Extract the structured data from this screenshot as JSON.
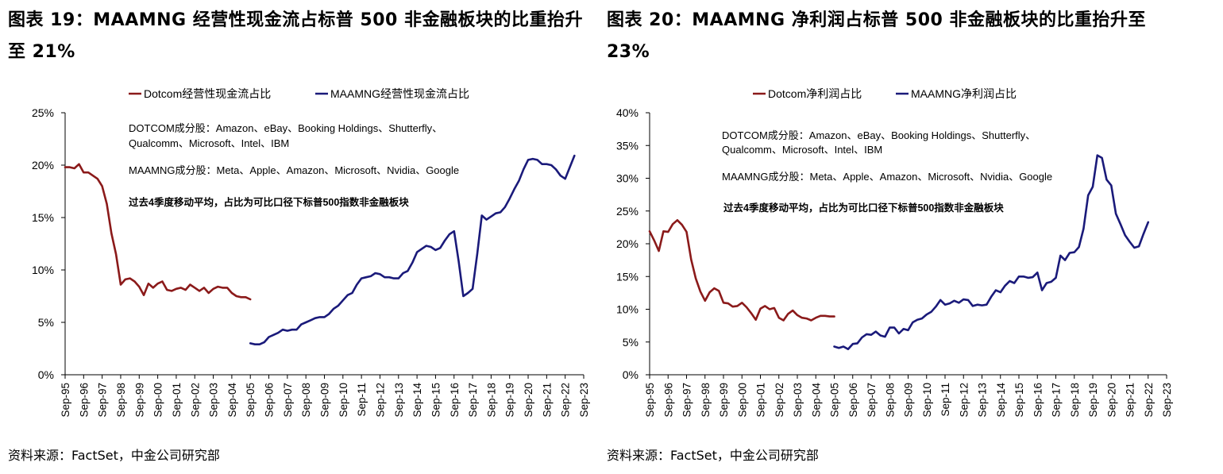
{
  "colors": {
    "dotcom": "#8b1a1a",
    "maamng": "#1a1a7a",
    "axis": "#000000"
  },
  "charts": [
    {
      "title": "图表 19：MAAMNG 经营性现金流占标普 500 非金融板块的比重抬升至 21%",
      "source": "资料来源：FactSet，中金公司研究部",
      "legend": [
        "Dotcom经营性现金流占比",
        "MAAMNG经营性现金流占比"
      ],
      "notes": [
        "DOTCOM成分股：Amazon、eBay、Booking Holdings、Shutterfly、",
        "Qualcomm、Microsoft、Intel、IBM",
        "MAAMNG成分股：Meta、Apple、Amazon、Microsoft、Nvidia、Google",
        "过去4季度移动平均，占比为可比口径下标普500指数非金融板块"
      ],
      "y_ticks": [
        "0%",
        "5%",
        "10%",
        "15%",
        "20%",
        "25%"
      ]
    },
    {
      "title": "图表 20：MAAMNG 净利润占标普 500 非金融板块的比重抬升至 23%",
      "source": "资料来源：FactSet，中金公司研究部",
      "legend": [
        "Dotcom净利润占比",
        "MAAMNG净利润占比"
      ],
      "notes": [
        "DOTCOM成分股：Amazon、eBay、Booking Holdings、Shutterfly、",
        "Qualcomm、Microsoft、Intel、IBM",
        "MAAMNG成分股：Meta、Apple、Amazon、Microsoft、Nvidia、Google",
        "过去4季度移动平均，占比为可比口径下标普500指数非金融板块"
      ],
      "y_ticks": [
        "0%",
        "5%",
        "10%",
        "15%",
        "20%",
        "25%",
        "30%",
        "35%",
        "40%"
      ]
    }
  ],
  "chart_data": [
    {
      "type": "line",
      "title": "图表 19：MAAMNG 经营性现金流占标普 500 非金融板块的比重抬升至 21%",
      "ylabel": "",
      "xlabel": "",
      "ylim": [
        0,
        25
      ],
      "x_tick_labels": [
        "Sep-95",
        "Sep-96",
        "Sep-97",
        "Sep-98",
        "Sep-99",
        "Sep-00",
        "Sep-01",
        "Sep-02",
        "Sep-03",
        "Sep-04",
        "Sep-05",
        "Sep-06",
        "Sep-07",
        "Sep-08",
        "Sep-09",
        "Sep-10",
        "Sep-11",
        "Sep-12",
        "Sep-13",
        "Sep-14",
        "Sep-15",
        "Sep-16",
        "Sep-17",
        "Sep-18",
        "Sep-19",
        "Sep-20",
        "Sep-21",
        "Sep-22",
        "Sep-23"
      ],
      "series": [
        {
          "name": "Dotcom经营性现金流占比",
          "color_key": "dotcom",
          "start_year": 1995.75,
          "values": [
            19.8,
            19.8,
            19.7,
            20.1,
            19.3,
            19.3,
            19.0,
            18.7,
            18.0,
            16.3,
            13.5,
            11.5,
            8.6,
            9.1,
            9.2,
            8.9,
            8.4,
            7.6,
            8.7,
            8.3,
            8.7,
            8.9,
            8.1,
            8.0,
            8.2,
            8.3,
            8.1,
            8.6,
            8.3,
            8.0,
            8.3,
            7.8,
            8.2,
            8.4,
            8.3,
            8.3,
            7.8,
            7.5,
            7.4,
            7.4,
            7.2
          ]
        },
        {
          "name": "MAAMNG经营性现金流占比",
          "color_key": "maamng",
          "start_year": 2005.75,
          "values": [
            3.0,
            2.9,
            2.9,
            3.1,
            3.6,
            3.8,
            4.0,
            4.3,
            4.2,
            4.3,
            4.3,
            4.8,
            5.0,
            5.2,
            5.4,
            5.5,
            5.5,
            5.8,
            6.3,
            6.6,
            7.1,
            7.6,
            7.8,
            8.6,
            9.2,
            9.3,
            9.4,
            9.7,
            9.6,
            9.3,
            9.3,
            9.2,
            9.2,
            9.7,
            9.9,
            10.7,
            11.7,
            12.0,
            12.3,
            12.2,
            11.9,
            12.1,
            12.8,
            13.4,
            13.7,
            10.8,
            7.5,
            7.8,
            8.2,
            11.5,
            15.2,
            14.8,
            15.1,
            15.4,
            15.5,
            16.0,
            16.8,
            17.7,
            18.5,
            19.6,
            20.5,
            20.6,
            20.5,
            20.1,
            20.1,
            20.0,
            19.6,
            19.0,
            18.7,
            19.8,
            20.9
          ]
        }
      ]
    },
    {
      "type": "line",
      "title": "图表 20：MAAMNG 净利润占标普 500 非金融板块的比重抬升至 23%",
      "ylabel": "",
      "xlabel": "",
      "ylim": [
        0,
        40
      ],
      "x_tick_labels": [
        "Sep-95",
        "Sep-96",
        "Sep-97",
        "Sep-98",
        "Sep-99",
        "Sep-00",
        "Sep-01",
        "Sep-02",
        "Sep-03",
        "Sep-04",
        "Sep-05",
        "Sep-06",
        "Sep-07",
        "Sep-08",
        "Sep-09",
        "Sep-10",
        "Sep-11",
        "Sep-12",
        "Sep-13",
        "Sep-14",
        "Sep-15",
        "Sep-16",
        "Sep-17",
        "Sep-18",
        "Sep-19",
        "Sep-20",
        "Sep-21",
        "Sep-22",
        "Sep-23"
      ],
      "series": [
        {
          "name": "Dotcom净利润占比",
          "color_key": "dotcom",
          "start_year": 1995.75,
          "values": [
            21.9,
            20.5,
            18.9,
            21.9,
            21.8,
            23.0,
            23.6,
            22.9,
            21.8,
            17.6,
            14.7,
            12.7,
            11.3,
            12.6,
            13.2,
            12.8,
            11.0,
            10.9,
            10.4,
            10.5,
            11.0,
            10.3,
            9.4,
            8.4,
            10.1,
            10.5,
            10.0,
            10.2,
            8.7,
            8.3,
            9.3,
            9.8,
            9.1,
            8.7,
            8.6,
            8.3,
            8.7,
            9.0,
            9.0,
            8.9,
            8.9
          ]
        },
        {
          "name": "MAAMNG净利润占比",
          "color_key": "maamng",
          "start_year": 2005.75,
          "values": [
            4.3,
            4.1,
            4.3,
            3.9,
            4.7,
            4.8,
            5.7,
            6.2,
            6.1,
            6.6,
            6.0,
            5.8,
            7.2,
            7.2,
            6.3,
            7.0,
            6.8,
            8.0,
            8.4,
            8.6,
            9.2,
            9.6,
            10.4,
            11.4,
            10.7,
            10.9,
            11.3,
            11.0,
            11.5,
            11.4,
            10.5,
            10.7,
            10.6,
            10.7,
            11.9,
            12.9,
            12.6,
            13.6,
            14.3,
            14.0,
            15.0,
            15.0,
            14.8,
            14.9,
            15.6,
            12.9,
            14.0,
            14.2,
            14.8,
            18.2,
            17.5,
            18.6,
            18.7,
            19.5,
            22.3,
            27.4,
            28.7,
            33.5,
            33.1,
            29.8,
            28.9,
            24.6,
            23.0,
            21.3,
            20.3,
            19.4,
            19.6,
            21.5,
            23.3
          ]
        }
      ]
    }
  ]
}
